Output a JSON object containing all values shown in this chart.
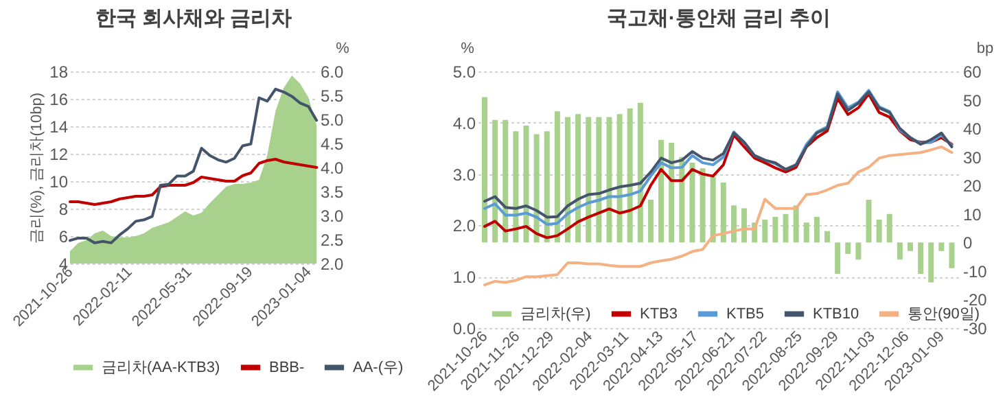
{
  "chart_data": [
    {
      "type": "line",
      "title": "한국 회사채와 금리차",
      "ylabel": "금리(%), 금리차(10bp)",
      "y2label": "%",
      "x": [
        "2021-10-26",
        "2021-11-10",
        "2021-11-25",
        "2021-12-10",
        "2021-12-25",
        "2022-01-09",
        "2022-01-24",
        "2022-02-08",
        "2022-02-23",
        "2022-03-10",
        "2022-03-25",
        "2022-04-09",
        "2022-04-24",
        "2022-05-09",
        "2022-05-24",
        "2022-06-08",
        "2022-06-23",
        "2022-07-08",
        "2022-07-23",
        "2022-08-07",
        "2022-08-22",
        "2022-09-06",
        "2022-09-21",
        "2022-10-06",
        "2022-10-21",
        "2022-11-05",
        "2022-11-20",
        "2022-12-05",
        "2022-12-20",
        "2023-01-04",
        "2023-01-19"
      ],
      "series": [
        {
          "name": "금리차(AA-KTB3)",
          "type": "area",
          "color": "#a9d18e",
          "values": [
            4.9,
            5.5,
            5.7,
            6.2,
            6.4,
            6.0,
            5.9,
            5.9,
            6.0,
            6.2,
            6.6,
            6.8,
            7.0,
            7.4,
            7.8,
            7.5,
            7.7,
            8.4,
            9.0,
            9.6,
            9.8,
            9.8,
            9.9,
            10.1,
            11.9,
            15.1,
            16.8,
            17.7,
            17.1,
            16.1,
            14.1
          ]
        },
        {
          "name": "BBB-",
          "color": "#c00000",
          "values": [
            8.5,
            8.5,
            8.4,
            8.3,
            8.4,
            8.5,
            8.7,
            8.8,
            8.9,
            8.9,
            9.0,
            9.6,
            9.7,
            9.7,
            9.7,
            9.9,
            10.3,
            10.2,
            10.1,
            10.0,
            10.0,
            10.4,
            10.6,
            11.3,
            11.5,
            11.6,
            11.4,
            11.3,
            11.2,
            11.1,
            11.0
          ]
        },
        {
          "name": "AA-(우)",
          "axis": "y2",
          "color": "#44546a",
          "values": [
            2.48,
            2.53,
            2.53,
            2.43,
            2.46,
            2.43,
            2.59,
            2.72,
            2.88,
            2.91,
            2.98,
            3.63,
            3.65,
            3.82,
            3.82,
            3.92,
            4.4,
            4.25,
            4.16,
            4.11,
            4.19,
            4.45,
            4.49,
            5.45,
            5.38,
            5.63,
            5.57,
            5.48,
            5.34,
            5.27,
            4.98
          ]
        }
      ],
      "xlim": [
        "2021-10-26",
        "2023-01-20"
      ],
      "xticks": [
        "2021-10-26",
        "2022-02-11",
        "2022-05-31",
        "2022-09-19",
        "2023-01-04"
      ],
      "ylim": [
        4,
        18
      ],
      "yticks": [
        4,
        6,
        8,
        10,
        12,
        14,
        16,
        18
      ],
      "y2lim": [
        2,
        6
      ],
      "y2ticks": [
        {
          "value": 2,
          "label": "2.0"
        },
        {
          "value": 2.5,
          "label": "2.5"
        },
        {
          "value": 3,
          "label": "3.0"
        },
        {
          "value": 3.5,
          "label": "3.5"
        },
        {
          "value": 4,
          "label": "4.0"
        },
        {
          "value": 4.5,
          "label": "4.5"
        },
        {
          "value": 5,
          "label": "5.0"
        },
        {
          "value": 5.5,
          "label": "5.5"
        },
        {
          "value": 6,
          "label": "6.0"
        }
      ],
      "legend": "bottom",
      "grid": "y"
    },
    {
      "type": "line",
      "title": "국고채·통안채 금리 추이",
      "ylabel": "%",
      "y2label": "bp",
      "x": [
        "2021-10-26",
        "2021-11-05",
        "2021-11-15",
        "2021-11-25",
        "2021-12-05",
        "2021-12-15",
        "2021-12-25",
        "2022-01-04",
        "2022-01-14",
        "2022-01-24",
        "2022-02-03",
        "2022-02-13",
        "2022-02-23",
        "2022-03-05",
        "2022-03-15",
        "2022-03-25",
        "2022-04-04",
        "2022-04-14",
        "2022-04-24",
        "2022-05-04",
        "2022-05-14",
        "2022-05-24",
        "2022-06-03",
        "2022-06-13",
        "2022-06-23",
        "2022-07-03",
        "2022-07-13",
        "2022-07-23",
        "2022-08-02",
        "2022-08-12",
        "2022-08-22",
        "2022-09-01",
        "2022-09-11",
        "2022-09-21",
        "2022-10-01",
        "2022-10-11",
        "2022-10-21",
        "2022-10-31",
        "2022-11-10",
        "2022-11-20",
        "2022-11-30",
        "2022-12-10",
        "2022-12-20",
        "2022-12-30",
        "2023-01-09",
        "2023-01-19"
      ],
      "series": [
        {
          "name": "금리차(우)",
          "type": "bar",
          "axis": "y2",
          "color": "#a9d18e",
          "values": [
            51,
            43,
            43,
            39,
            41,
            38,
            39,
            46,
            44,
            45,
            44,
            44,
            44,
            45,
            47,
            49,
            15,
            36,
            35,
            30,
            28,
            26,
            23,
            21,
            13,
            12,
            7,
            8,
            9,
            10,
            13,
            7,
            9,
            4,
            -11,
            -4,
            -6,
            15,
            8,
            10,
            -6,
            -3,
            -11,
            -14,
            -3,
            -9
          ]
        },
        {
          "name": "KTB3",
          "color": "#c00000",
          "values": [
            1.98,
            2.08,
            1.89,
            1.93,
            1.98,
            1.84,
            1.76,
            1.8,
            1.93,
            2.07,
            2.16,
            2.24,
            2.32,
            2.24,
            2.29,
            2.38,
            2.78,
            3.09,
            2.87,
            2.87,
            3.09,
            3.0,
            2.96,
            3.18,
            3.76,
            3.53,
            3.31,
            3.22,
            3.12,
            3.04,
            3.13,
            3.53,
            3.71,
            3.84,
            4.47,
            4.16,
            4.29,
            4.56,
            4.2,
            4.11,
            3.84,
            3.67,
            3.62,
            3.62,
            3.71,
            3.58
          ]
        },
        {
          "name": "KTB5",
          "color": "#5b9bd5",
          "values": [
            2.33,
            2.42,
            2.2,
            2.2,
            2.24,
            2.16,
            2.02,
            2.04,
            2.23,
            2.35,
            2.44,
            2.49,
            2.56,
            2.56,
            2.6,
            2.67,
            2.96,
            3.22,
            3.12,
            3.13,
            3.36,
            3.22,
            3.18,
            3.33,
            3.82,
            3.62,
            3.36,
            3.27,
            3.2,
            3.09,
            3.18,
            3.58,
            3.82,
            3.92,
            4.6,
            4.29,
            4.4,
            4.63,
            4.31,
            4.22,
            3.86,
            3.71,
            3.6,
            3.62,
            3.76,
            3.56
          ]
        },
        {
          "name": "KTB10",
          "color": "#44546a",
          "values": [
            2.47,
            2.56,
            2.35,
            2.33,
            2.38,
            2.29,
            2.16,
            2.17,
            2.38,
            2.51,
            2.6,
            2.62,
            2.69,
            2.75,
            2.78,
            2.82,
            3.04,
            3.31,
            3.22,
            3.27,
            3.44,
            3.31,
            3.27,
            3.4,
            3.8,
            3.62,
            3.36,
            3.27,
            3.22,
            3.09,
            3.18,
            3.53,
            3.8,
            3.89,
            4.56,
            4.24,
            4.38,
            4.6,
            4.29,
            4.2,
            3.89,
            3.71,
            3.58,
            3.67,
            3.8,
            3.53
          ]
        },
        {
          "name": "통안(90일)",
          "color": "#f4b183",
          "values": [
            0.84,
            0.91,
            0.89,
            0.93,
            1.0,
            1.0,
            1.02,
            1.04,
            1.27,
            1.27,
            1.25,
            1.25,
            1.22,
            1.2,
            1.2,
            1.2,
            1.27,
            1.31,
            1.34,
            1.4,
            1.49,
            1.53,
            1.8,
            1.84,
            1.89,
            1.93,
            1.93,
            2.51,
            2.33,
            2.33,
            2.33,
            2.6,
            2.62,
            2.69,
            2.78,
            2.82,
            3.04,
            3.13,
            3.31,
            3.36,
            3.38,
            3.4,
            3.42,
            3.47,
            3.53,
            3.42
          ]
        }
      ],
      "xlim": [
        "2021-10-26",
        "2023-01-20"
      ],
      "xticks": [
        "2021-10-26",
        "2021-11-26",
        "2021-12-29",
        "2022-02-04",
        "2022-03-11",
        "2022-04-13",
        "2022-05-17",
        "2022-06-21",
        "2022-07-22",
        "2022-08-25",
        "2022-09-29",
        "2022-11-03",
        "2022-12-06",
        "2023-01-09"
      ],
      "ylim": [
        0,
        5
      ],
      "yticks": [
        {
          "value": 0,
          "label": "0.0"
        },
        {
          "value": 1,
          "label": "1.0"
        },
        {
          "value": 2,
          "label": "2.0"
        },
        {
          "value": 3,
          "label": "3.0"
        },
        {
          "value": 4,
          "label": "4.0"
        },
        {
          "value": 5,
          "label": "5.0"
        }
      ],
      "y2lim": [
        -30,
        60
      ],
      "y2ticks": [
        -30,
        -20,
        -10,
        0,
        10,
        20,
        30,
        40,
        50,
        60
      ],
      "legend": "bottom",
      "grid": "y"
    }
  ]
}
